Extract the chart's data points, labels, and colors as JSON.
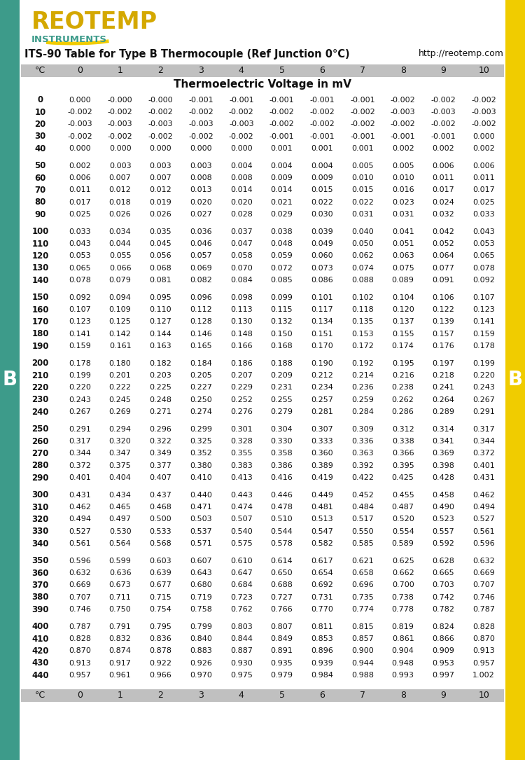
{
  "title": "ITS-90 Table for Type B Thermocouple (Ref Junction 0°C)",
  "url": "http://reotemp.com",
  "subtitle": "Thermoelectric Voltage in mV",
  "col_headers": [
    "°C",
    "0",
    "1",
    "2",
    "3",
    "4",
    "5",
    "6",
    "7",
    "8",
    "9",
    "10"
  ],
  "table_data": [
    [
      0,
      "0.000",
      "-0.000",
      "-0.000",
      "-0.001",
      "-0.001",
      "-0.001",
      "-0.001",
      "-0.001",
      "-0.002",
      "-0.002",
      "-0.002"
    ],
    [
      10,
      "-0.002",
      "-0.002",
      "-0.002",
      "-0.002",
      "-0.002",
      "-0.002",
      "-0.002",
      "-0.002",
      "-0.003",
      "-0.003",
      "-0.003"
    ],
    [
      20,
      "-0.003",
      "-0.003",
      "-0.003",
      "-0.003",
      "-0.003",
      "-0.002",
      "-0.002",
      "-0.002",
      "-0.002",
      "-0.002",
      "-0.002"
    ],
    [
      30,
      "-0.002",
      "-0.002",
      "-0.002",
      "-0.002",
      "-0.002",
      "-0.001",
      "-0.001",
      "-0.001",
      "-0.001",
      "-0.001",
      "0.000"
    ],
    [
      40,
      "0.000",
      "0.000",
      "0.000",
      "0.000",
      "0.000",
      "0.001",
      "0.001",
      "0.001",
      "0.002",
      "0.002",
      "0.002"
    ],
    [
      50,
      "0.002",
      "0.003",
      "0.003",
      "0.003",
      "0.004",
      "0.004",
      "0.004",
      "0.005",
      "0.005",
      "0.006",
      "0.006"
    ],
    [
      60,
      "0.006",
      "0.007",
      "0.007",
      "0.008",
      "0.008",
      "0.009",
      "0.009",
      "0.010",
      "0.010",
      "0.011",
      "0.011"
    ],
    [
      70,
      "0.011",
      "0.012",
      "0.012",
      "0.013",
      "0.014",
      "0.014",
      "0.015",
      "0.015",
      "0.016",
      "0.017",
      "0.017"
    ],
    [
      80,
      "0.017",
      "0.018",
      "0.019",
      "0.020",
      "0.020",
      "0.021",
      "0.022",
      "0.022",
      "0.023",
      "0.024",
      "0.025"
    ],
    [
      90,
      "0.025",
      "0.026",
      "0.026",
      "0.027",
      "0.028",
      "0.029",
      "0.030",
      "0.031",
      "0.031",
      "0.032",
      "0.033"
    ],
    [
      100,
      "0.033",
      "0.034",
      "0.035",
      "0.036",
      "0.037",
      "0.038",
      "0.039",
      "0.040",
      "0.041",
      "0.042",
      "0.043"
    ],
    [
      110,
      "0.043",
      "0.044",
      "0.045",
      "0.046",
      "0.047",
      "0.048",
      "0.049",
      "0.050",
      "0.051",
      "0.052",
      "0.053"
    ],
    [
      120,
      "0.053",
      "0.055",
      "0.056",
      "0.057",
      "0.058",
      "0.059",
      "0.060",
      "0.062",
      "0.063",
      "0.064",
      "0.065"
    ],
    [
      130,
      "0.065",
      "0.066",
      "0.068",
      "0.069",
      "0.070",
      "0.072",
      "0.073",
      "0.074",
      "0.075",
      "0.077",
      "0.078"
    ],
    [
      140,
      "0.078",
      "0.079",
      "0.081",
      "0.082",
      "0.084",
      "0.085",
      "0.086",
      "0.088",
      "0.089",
      "0.091",
      "0.092"
    ],
    [
      150,
      "0.092",
      "0.094",
      "0.095",
      "0.096",
      "0.098",
      "0.099",
      "0.101",
      "0.102",
      "0.104",
      "0.106",
      "0.107"
    ],
    [
      160,
      "0.107",
      "0.109",
      "0.110",
      "0.112",
      "0.113",
      "0.115",
      "0.117",
      "0.118",
      "0.120",
      "0.122",
      "0.123"
    ],
    [
      170,
      "0.123",
      "0.125",
      "0.127",
      "0.128",
      "0.130",
      "0.132",
      "0.134",
      "0.135",
      "0.137",
      "0.139",
      "0.141"
    ],
    [
      180,
      "0.141",
      "0.142",
      "0.144",
      "0.146",
      "0.148",
      "0.150",
      "0.151",
      "0.153",
      "0.155",
      "0.157",
      "0.159"
    ],
    [
      190,
      "0.159",
      "0.161",
      "0.163",
      "0.165",
      "0.166",
      "0.168",
      "0.170",
      "0.172",
      "0.174",
      "0.176",
      "0.178"
    ],
    [
      200,
      "0.178",
      "0.180",
      "0.182",
      "0.184",
      "0.186",
      "0.188",
      "0.190",
      "0.192",
      "0.195",
      "0.197",
      "0.199"
    ],
    [
      210,
      "0.199",
      "0.201",
      "0.203",
      "0.205",
      "0.207",
      "0.209",
      "0.212",
      "0.214",
      "0.216",
      "0.218",
      "0.220"
    ],
    [
      220,
      "0.220",
      "0.222",
      "0.225",
      "0.227",
      "0.229",
      "0.231",
      "0.234",
      "0.236",
      "0.238",
      "0.241",
      "0.243"
    ],
    [
      230,
      "0.243",
      "0.245",
      "0.248",
      "0.250",
      "0.252",
      "0.255",
      "0.257",
      "0.259",
      "0.262",
      "0.264",
      "0.267"
    ],
    [
      240,
      "0.267",
      "0.269",
      "0.271",
      "0.274",
      "0.276",
      "0.279",
      "0.281",
      "0.284",
      "0.286",
      "0.289",
      "0.291"
    ],
    [
      250,
      "0.291",
      "0.294",
      "0.296",
      "0.299",
      "0.301",
      "0.304",
      "0.307",
      "0.309",
      "0.312",
      "0.314",
      "0.317"
    ],
    [
      260,
      "0.317",
      "0.320",
      "0.322",
      "0.325",
      "0.328",
      "0.330",
      "0.333",
      "0.336",
      "0.338",
      "0.341",
      "0.344"
    ],
    [
      270,
      "0.344",
      "0.347",
      "0.349",
      "0.352",
      "0.355",
      "0.358",
      "0.360",
      "0.363",
      "0.366",
      "0.369",
      "0.372"
    ],
    [
      280,
      "0.372",
      "0.375",
      "0.377",
      "0.380",
      "0.383",
      "0.386",
      "0.389",
      "0.392",
      "0.395",
      "0.398",
      "0.401"
    ],
    [
      290,
      "0.401",
      "0.404",
      "0.407",
      "0.410",
      "0.413",
      "0.416",
      "0.419",
      "0.422",
      "0.425",
      "0.428",
      "0.431"
    ],
    [
      300,
      "0.431",
      "0.434",
      "0.437",
      "0.440",
      "0.443",
      "0.446",
      "0.449",
      "0.452",
      "0.455",
      "0.458",
      "0.462"
    ],
    [
      310,
      "0.462",
      "0.465",
      "0.468",
      "0.471",
      "0.474",
      "0.478",
      "0.481",
      "0.484",
      "0.487",
      "0.490",
      "0.494"
    ],
    [
      320,
      "0.494",
      "0.497",
      "0.500",
      "0.503",
      "0.507",
      "0.510",
      "0.513",
      "0.517",
      "0.520",
      "0.523",
      "0.527"
    ],
    [
      330,
      "0.527",
      "0.530",
      "0.533",
      "0.537",
      "0.540",
      "0.544",
      "0.547",
      "0.550",
      "0.554",
      "0.557",
      "0.561"
    ],
    [
      340,
      "0.561",
      "0.564",
      "0.568",
      "0.571",
      "0.575",
      "0.578",
      "0.582",
      "0.585",
      "0.589",
      "0.592",
      "0.596"
    ],
    [
      350,
      "0.596",
      "0.599",
      "0.603",
      "0.607",
      "0.610",
      "0.614",
      "0.617",
      "0.621",
      "0.625",
      "0.628",
      "0.632"
    ],
    [
      360,
      "0.632",
      "0.636",
      "0.639",
      "0.643",
      "0.647",
      "0.650",
      "0.654",
      "0.658",
      "0.662",
      "0.665",
      "0.669"
    ],
    [
      370,
      "0.669",
      "0.673",
      "0.677",
      "0.680",
      "0.684",
      "0.688",
      "0.692",
      "0.696",
      "0.700",
      "0.703",
      "0.707"
    ],
    [
      380,
      "0.707",
      "0.711",
      "0.715",
      "0.719",
      "0.723",
      "0.727",
      "0.731",
      "0.735",
      "0.738",
      "0.742",
      "0.746"
    ],
    [
      390,
      "0.746",
      "0.750",
      "0.754",
      "0.758",
      "0.762",
      "0.766",
      "0.770",
      "0.774",
      "0.778",
      "0.782",
      "0.787"
    ],
    [
      400,
      "0.787",
      "0.791",
      "0.795",
      "0.799",
      "0.803",
      "0.807",
      "0.811",
      "0.815",
      "0.819",
      "0.824",
      "0.828"
    ],
    [
      410,
      "0.828",
      "0.832",
      "0.836",
      "0.840",
      "0.844",
      "0.849",
      "0.853",
      "0.857",
      "0.861",
      "0.866",
      "0.870"
    ],
    [
      420,
      "0.870",
      "0.874",
      "0.878",
      "0.883",
      "0.887",
      "0.891",
      "0.896",
      "0.900",
      "0.904",
      "0.909",
      "0.913"
    ],
    [
      430,
      "0.913",
      "0.917",
      "0.922",
      "0.926",
      "0.930",
      "0.935",
      "0.939",
      "0.944",
      "0.948",
      "0.953",
      "0.957"
    ],
    [
      440,
      "0.957",
      "0.961",
      "0.966",
      "0.970",
      "0.975",
      "0.979",
      "0.984",
      "0.988",
      "0.993",
      "0.997",
      "1.002"
    ]
  ],
  "group_breaks": [
    40,
    90,
    140,
    190,
    240,
    290,
    340,
    390,
    440
  ],
  "left_bar_color": "#3d9b8a",
  "right_bar_color": "#f0cc00",
  "header_bg_color": "#c0c0c0",
  "logo_yellow": "#f0cc00",
  "logo_green": "#3d9b8a",
  "logo_text_color": "#d4a800",
  "instruments_color": "#3d9b8a",
  "title_color": "#111111",
  "data_text_color": "#111111",
  "bg_color": "#ffffff"
}
